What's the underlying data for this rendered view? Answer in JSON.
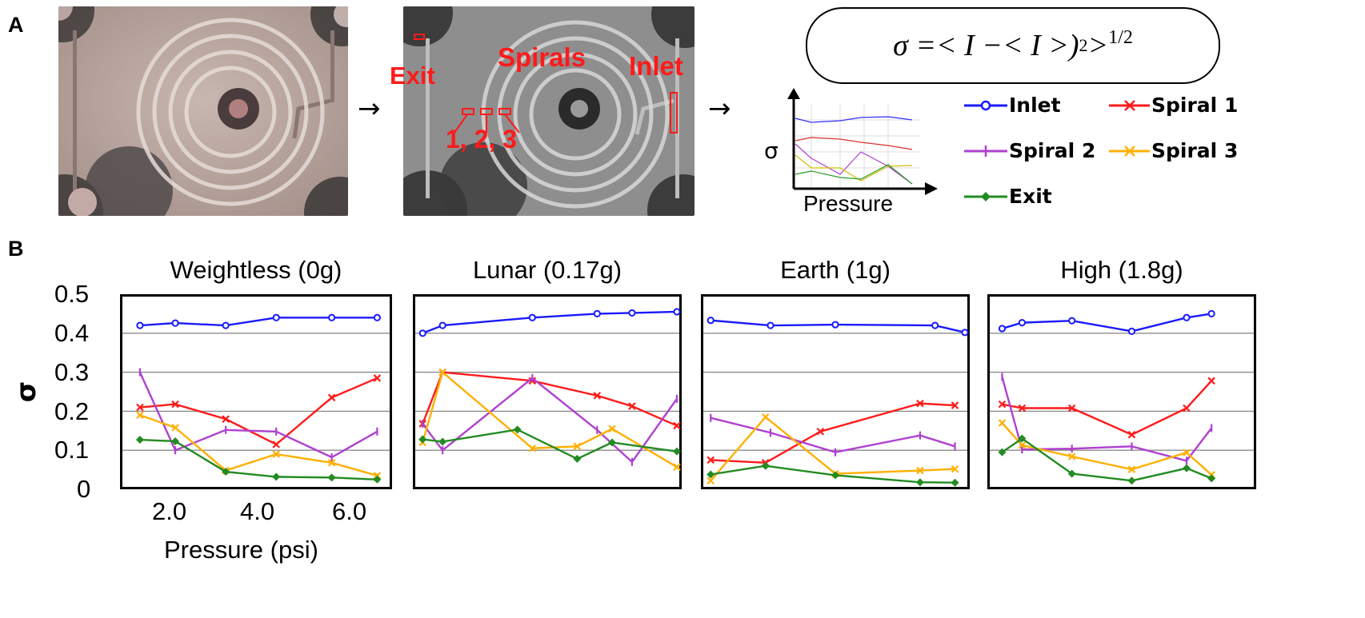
{
  "panel_a": {
    "letter": "A",
    "photo_labels": {
      "exit": "Exit",
      "spirals": "Spirals",
      "inlet": "Inlet",
      "positions": "1, 2, 3"
    },
    "formula": {
      "base": "σ =< I −< I >)",
      "sq": "2",
      "gt": " > ",
      "exp": "1/2"
    },
    "mini_chart": {
      "ylabel": "σ",
      "xlabel": "Pressure"
    },
    "legend": [
      {
        "label": "Inlet",
        "color": "#1a1aff",
        "marker": "circle"
      },
      {
        "label": "Spiral 1",
        "color": "#ff1a1a",
        "marker": "x"
      },
      {
        "label": "Spiral 2",
        "color": "#b040d0",
        "marker": "plus"
      },
      {
        "label": "Spiral 3",
        "color": "#ffb000",
        "marker": "x"
      },
      {
        "label": "Exit",
        "color": "#228b22",
        "marker": "diamond"
      }
    ]
  },
  "panel_b": {
    "letter": "B",
    "ylabel": "σ",
    "xlabel": "Pressure (psi)",
    "yticks": [
      "0.5",
      "0.4",
      "0.3",
      "0.2",
      "0.1",
      "0"
    ],
    "xticks": [
      "2.0",
      "4.0",
      "6.0"
    ]
  },
  "chart_data": [
    {
      "type": "line",
      "title": "Weightless (0g)",
      "xlabel": "Pressure (psi)",
      "ylabel": "σ",
      "ylim": [
        0,
        0.5
      ],
      "xlim": [
        1.0,
        6.2
      ],
      "grid": true,
      "series": [
        {
          "name": "Inlet",
          "color": "#1a1aff",
          "marker": "circle",
          "x": [
            1.3,
            2.0,
            3.0,
            4.0,
            5.1,
            6.0
          ],
          "values": [
            0.42,
            0.426,
            0.42,
            0.44,
            0.44,
            0.44
          ]
        },
        {
          "name": "Spiral 1",
          "color": "#ff1a1a",
          "marker": "x",
          "x": [
            1.3,
            2.0,
            3.0,
            4.0,
            5.1,
            6.0
          ],
          "values": [
            0.21,
            0.218,
            0.18,
            0.115,
            0.235,
            0.285
          ]
        },
        {
          "name": "Spiral 2",
          "color": "#b040d0",
          "marker": "plus",
          "x": [
            1.3,
            2.0,
            3.0,
            4.0,
            5.1,
            6.0
          ],
          "values": [
            0.3,
            0.1,
            0.152,
            0.148,
            0.082,
            0.148
          ]
        },
        {
          "name": "Spiral 3",
          "color": "#ffb000",
          "marker": "x",
          "x": [
            1.3,
            2.0,
            3.0,
            4.0,
            5.1,
            6.0
          ],
          "values": [
            0.19,
            0.158,
            0.048,
            0.09,
            0.068,
            0.035
          ]
        },
        {
          "name": "Exit",
          "color": "#228b22",
          "marker": "diamond",
          "x": [
            1.3,
            2.0,
            3.0,
            4.0,
            5.1,
            6.0
          ],
          "values": [
            0.127,
            0.123,
            0.045,
            0.032,
            0.03,
            0.025
          ]
        }
      ]
    },
    {
      "type": "line",
      "title": "Lunar (0.17g)",
      "xlabel": "",
      "ylabel": "",
      "ylim": [
        0,
        0.5
      ],
      "xlim": [
        1.0,
        6.2
      ],
      "grid": true,
      "series": [
        {
          "name": "Inlet",
          "color": "#1a1aff",
          "marker": "circle",
          "x": [
            1.1,
            1.5,
            3.3,
            4.6,
            5.3,
            6.2
          ],
          "values": [
            0.4,
            0.42,
            0.44,
            0.45,
            0.452,
            0.455
          ]
        },
        {
          "name": "Spiral 1",
          "color": "#ff1a1a",
          "marker": "x",
          "x": [
            1.1,
            1.5,
            3.3,
            4.6,
            5.3,
            6.2
          ],
          "values": [
            0.168,
            0.3,
            0.278,
            0.24,
            0.213,
            0.163
          ]
        },
        {
          "name": "Spiral 2",
          "color": "#b040d0",
          "marker": "plus",
          "x": [
            1.1,
            1.5,
            3.3,
            4.6,
            5.3,
            6.2
          ],
          "values": [
            0.168,
            0.1,
            0.285,
            0.152,
            0.07,
            0.232
          ]
        },
        {
          "name": "Spiral 3",
          "color": "#ffb000",
          "marker": "x",
          "x": [
            1.1,
            1.5,
            3.3,
            4.2,
            4.9,
            6.2
          ],
          "values": [
            0.12,
            0.3,
            0.105,
            0.11,
            0.155,
            0.057
          ]
        },
        {
          "name": "Exit",
          "color": "#228b22",
          "marker": "diamond",
          "x": [
            1.1,
            1.5,
            3.0,
            4.2,
            4.9,
            6.2
          ],
          "values": [
            0.128,
            0.122,
            0.153,
            0.078,
            0.12,
            0.097
          ]
        }
      ]
    },
    {
      "type": "line",
      "title": "Earth (1g)",
      "xlabel": "",
      "ylabel": "",
      "ylim": [
        0,
        0.5
      ],
      "xlim": [
        1.0,
        6.2
      ],
      "grid": true,
      "series": [
        {
          "name": "Inlet",
          "color": "#1a1aff",
          "marker": "circle",
          "x": [
            1.1,
            2.3,
            3.6,
            5.6,
            6.2
          ],
          "values": [
            0.433,
            0.42,
            0.422,
            0.42,
            0.402
          ]
        },
        {
          "name": "Spiral 1",
          "color": "#ff1a1a",
          "marker": "x",
          "x": [
            1.1,
            2.2,
            3.3,
            5.3,
            6.0
          ],
          "values": [
            0.075,
            0.068,
            0.148,
            0.22,
            0.215
          ]
        },
        {
          "name": "Spiral 2",
          "color": "#b040d0",
          "marker": "plus",
          "x": [
            1.1,
            2.3,
            3.6,
            5.3,
            6.0
          ],
          "values": [
            0.183,
            0.145,
            0.095,
            0.138,
            0.11
          ]
        },
        {
          "name": "Spiral 3",
          "color": "#ffb000",
          "marker": "x",
          "x": [
            1.1,
            2.2,
            3.6,
            5.3,
            6.0
          ],
          "values": [
            0.022,
            0.185,
            0.04,
            0.048,
            0.052
          ]
        },
        {
          "name": "Exit",
          "color": "#228b22",
          "marker": "diamond",
          "x": [
            1.1,
            2.2,
            3.6,
            5.3,
            6.0
          ],
          "values": [
            0.038,
            0.06,
            0.036,
            0.018,
            0.017
          ]
        }
      ]
    },
    {
      "type": "line",
      "title": "High (1.8g)",
      "xlabel": "",
      "ylabel": "",
      "ylim": [
        0,
        0.5
      ],
      "xlim": [
        1.0,
        6.2
      ],
      "grid": true,
      "series": [
        {
          "name": "Inlet",
          "color": "#1a1aff",
          "marker": "circle",
          "x": [
            1.2,
            1.6,
            2.6,
            3.8,
            4.9,
            5.4
          ],
          "values": [
            0.412,
            0.427,
            0.432,
            0.405,
            0.44,
            0.45
          ]
        },
        {
          "name": "Spiral 1",
          "color": "#ff1a1a",
          "marker": "x",
          "x": [
            1.2,
            1.6,
            2.6,
            3.8,
            4.9,
            5.4
          ],
          "values": [
            0.218,
            0.208,
            0.208,
            0.14,
            0.208,
            0.278
          ]
        },
        {
          "name": "Spiral 2",
          "color": "#b040d0",
          "marker": "plus",
          "x": [
            1.2,
            1.6,
            2.6,
            3.8,
            4.9,
            5.4
          ],
          "values": [
            0.288,
            0.102,
            0.104,
            0.11,
            0.073,
            0.157
          ]
        },
        {
          "name": "Spiral 3",
          "color": "#ffb000",
          "marker": "x",
          "x": [
            1.2,
            1.6,
            2.6,
            3.8,
            4.9,
            5.4
          ],
          "values": [
            0.17,
            0.113,
            0.084,
            0.051,
            0.094,
            0.037
          ]
        },
        {
          "name": "Exit",
          "color": "#228b22",
          "marker": "diamond",
          "x": [
            1.2,
            1.6,
            2.6,
            3.8,
            4.9,
            5.4
          ],
          "values": [
            0.095,
            0.13,
            0.04,
            0.022,
            0.054,
            0.028
          ]
        }
      ]
    }
  ]
}
